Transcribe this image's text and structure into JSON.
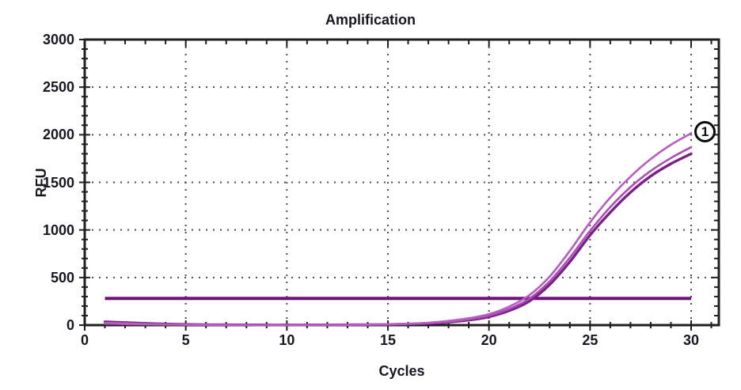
{
  "chart": {
    "title": "Amplification",
    "x_axis": {
      "label": "Cycles",
      "major_ticks": [
        0,
        5,
        10,
        15,
        20,
        25,
        30
      ],
      "minor_step": 1,
      "min": 0,
      "max": 31.4
    },
    "y_axis": {
      "label": "RFU",
      "major_ticks": [
        0,
        500,
        1000,
        1500,
        2000,
        2500,
        3000
      ],
      "minor_step": 100,
      "min": 0,
      "max": 3000
    },
    "annotation": {
      "label": "1"
    }
  },
  "colors": {
    "background": "#ffffff",
    "axis": "#1f1f1f",
    "grid_dot": "#4d4d4d",
    "text": "#17171f",
    "threshold": "#70107a"
  },
  "chart_data": {
    "type": "line",
    "title": "Amplification",
    "xlabel": "Cycles",
    "ylabel": "RFU",
    "xlim": [
      0,
      31.4
    ],
    "ylim": [
      0,
      3000
    ],
    "grid": "dotted-at-major-ticks",
    "legend": "none",
    "x": [
      1,
      2,
      3,
      4,
      5,
      6,
      7,
      8,
      9,
      10,
      11,
      12,
      13,
      14,
      15,
      16,
      17,
      18,
      19,
      20,
      21,
      22,
      23,
      24,
      25,
      26,
      27,
      28,
      29,
      30
    ],
    "series": [
      {
        "name": "trace-1",
        "color": "#b75cc0",
        "width": 2.6,
        "values": [
          25,
          18,
          12,
          8,
          6,
          4,
          3,
          2,
          2,
          2,
          2,
          3,
          4,
          6,
          9,
          15,
          25,
          44,
          72,
          115,
          195,
          315,
          510,
          780,
          1080,
          1340,
          1560,
          1745,
          1895,
          2015
        ]
      },
      {
        "name": "trace-2",
        "color": "#a94fb4",
        "width": 2.6,
        "values": [
          15,
          11,
          8,
          6,
          4,
          3,
          2,
          2,
          1,
          1,
          2,
          2,
          3,
          5,
          8,
          13,
          21,
          36,
          62,
          100,
          170,
          278,
          460,
          710,
          990,
          1240,
          1450,
          1620,
          1755,
          1870
        ]
      },
      {
        "name": "trace-3",
        "color": "#7b2086",
        "width": 3.4,
        "values": [
          35,
          26,
          18,
          12,
          8,
          5,
          4,
          3,
          2,
          2,
          2,
          3,
          4,
          5,
          7,
          11,
          18,
          31,
          53,
          88,
          152,
          252,
          425,
          665,
          945,
          1185,
          1395,
          1565,
          1695,
          1800
        ]
      }
    ],
    "threshold": {
      "value": 280,
      "x_start": 1,
      "x_end": 30,
      "color": "#70107a",
      "width": 4
    },
    "annotation": {
      "label": "1",
      "at_x": 30,
      "at_y": 2015
    }
  }
}
